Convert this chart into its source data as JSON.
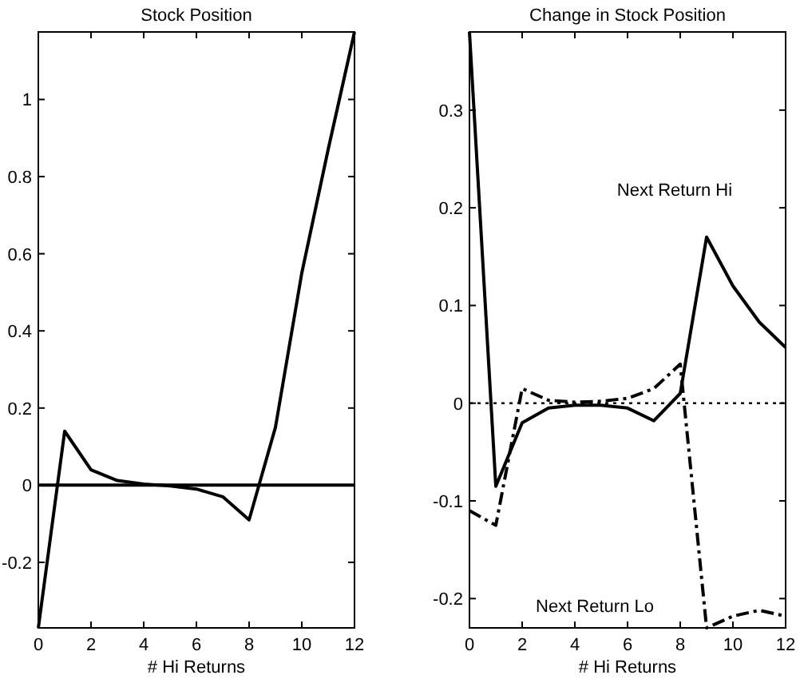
{
  "chart_data": [
    {
      "type": "line",
      "title": "Stock Position",
      "xlabel": "# Hi Returns",
      "x": [
        0,
        1,
        2,
        3,
        4,
        5,
        6,
        7,
        8,
        9,
        10,
        11,
        12
      ],
      "xlim": [
        0,
        12
      ],
      "xticks": [
        0,
        2,
        4,
        6,
        8,
        10,
        12
      ],
      "ylim": [
        -0.37,
        1.175
      ],
      "yticks": [
        -0.2,
        0,
        0.2,
        0.4,
        0.6,
        0.8,
        1
      ],
      "grid": false,
      "series": [
        {
          "color": "#000000",
          "line_style": "solid",
          "values": [
            -0.37,
            0.14,
            0.04,
            0.012,
            0.003,
            -0.002,
            -0.01,
            -0.03,
            -0.09,
            0.15,
            0.55,
            0.87,
            1.175
          ]
        }
      ],
      "ref_lines": [
        {
          "axis": "y",
          "value": 0,
          "color": "#000000",
          "line_style": "solid"
        }
      ]
    },
    {
      "type": "line",
      "title": "Change in Stock Position",
      "xlabel": "# Hi Returns",
      "x": [
        0,
        1,
        2,
        3,
        4,
        5,
        6,
        7,
        8,
        9,
        10,
        11,
        12
      ],
      "xlim": [
        0,
        12
      ],
      "xticks": [
        0,
        2,
        4,
        6,
        8,
        10,
        12
      ],
      "ylim": [
        -0.23,
        0.38
      ],
      "yticks": [
        -0.2,
        -0.1,
        0,
        0.1,
        0.2,
        0.3
      ],
      "grid": false,
      "series": [
        {
          "name": "Next Return Hi",
          "color": "#000000",
          "line_style": "solid",
          "values": [
            0.38,
            -0.085,
            -0.02,
            -0.005,
            -0.002,
            -0.002,
            -0.005,
            -0.018,
            0.01,
            0.17,
            0.12,
            0.083,
            0.057
          ]
        },
        {
          "name": "Next Return Lo",
          "color": "#000000",
          "line_style": "dashed",
          "values": [
            -0.11,
            -0.125,
            0.015,
            0.003,
            0.001,
            0.002,
            0.005,
            0.015,
            0.04,
            -0.23,
            -0.218,
            -0.212,
            -0.218
          ]
        }
      ],
      "ref_lines": [
        {
          "axis": "y",
          "value": 0,
          "color": "#000000",
          "line_style": "dotted"
        }
      ]
    }
  ]
}
